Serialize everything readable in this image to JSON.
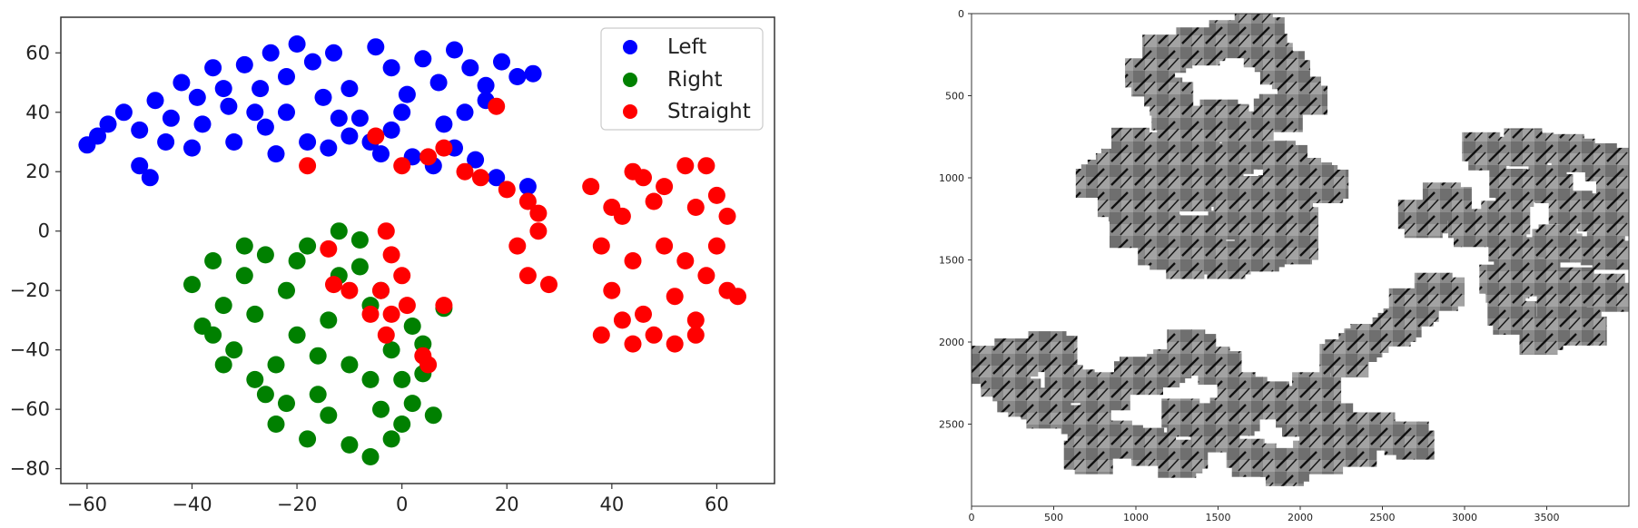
{
  "chart_data": [
    {
      "type": "scatter",
      "title": "",
      "xlabel": "",
      "ylabel": "",
      "xlim": [
        -65,
        71
      ],
      "ylim": [
        -85,
        72
      ],
      "xticks": [
        -60,
        -40,
        -20,
        0,
        20,
        40,
        60
      ],
      "yticks": [
        -80,
        -60,
        -40,
        -20,
        0,
        20,
        40,
        60
      ],
      "xtick_labels": [
        "−60",
        "−40",
        "−20",
        "0",
        "20",
        "40",
        "60"
      ],
      "ytick_labels": [
        "−80",
        "−60",
        "−40",
        "−20",
        "0",
        "20",
        "40",
        "60"
      ],
      "grid": false,
      "legend": {
        "placement": "top-right",
        "entries": [
          "Left",
          "Right",
          "Straight"
        ]
      },
      "series": [
        {
          "name": "Left",
          "color": "#0000ff",
          "points": [
            [
              -60,
              29
            ],
            [
              -56,
              36
            ],
            [
              -53,
              40
            ],
            [
              -50,
              34
            ],
            [
              -47,
              44
            ],
            [
              -44,
              38
            ],
            [
              -42,
              50
            ],
            [
              -39,
              45
            ],
            [
              -36,
              55
            ],
            [
              -33,
              42
            ],
            [
              -30,
              56
            ],
            [
              -27,
              48
            ],
            [
              -25,
              60
            ],
            [
              -22,
              52
            ],
            [
              -20,
              63
            ],
            [
              -17,
              57
            ],
            [
              -15,
              45
            ],
            [
              -13,
              60
            ],
            [
              -10,
              48
            ],
            [
              -8,
              38
            ],
            [
              -5,
              62
            ],
            [
              -2,
              55
            ],
            [
              1,
              46
            ],
            [
              4,
              58
            ],
            [
              7,
              50
            ],
            [
              10,
              61
            ],
            [
              13,
              55
            ],
            [
              16,
              49
            ],
            [
              19,
              57
            ],
            [
              22,
              52
            ],
            [
              25,
              53
            ],
            [
              -50,
              22
            ],
            [
              -45,
              30
            ],
            [
              -38,
              36
            ],
            [
              -32,
              30
            ],
            [
              -26,
              35
            ],
            [
              -22,
              40
            ],
            [
              -18,
              30
            ],
            [
              -14,
              28
            ],
            [
              -10,
              32
            ],
            [
              -6,
              30
            ],
            [
              -2,
              34
            ],
            [
              2,
              25
            ],
            [
              6,
              22
            ],
            [
              10,
              28
            ],
            [
              14,
              24
            ],
            [
              18,
              18
            ],
            [
              24,
              15
            ],
            [
              -58,
              32
            ],
            [
              -48,
              18
            ],
            [
              -40,
              28
            ],
            [
              -34,
              48
            ],
            [
              -28,
              40
            ],
            [
              -12,
              38
            ],
            [
              0,
              40
            ],
            [
              8,
              36
            ],
            [
              12,
              40
            ],
            [
              16,
              44
            ],
            [
              -24,
              26
            ],
            [
              -4,
              26
            ]
          ]
        },
        {
          "name": "Right",
          "color": "#008000",
          "points": [
            [
              -40,
              -18
            ],
            [
              -38,
              -32
            ],
            [
              -36,
              -10
            ],
            [
              -34,
              -25
            ],
            [
              -32,
              -40
            ],
            [
              -30,
              -15
            ],
            [
              -28,
              -28
            ],
            [
              -26,
              -8
            ],
            [
              -24,
              -45
            ],
            [
              -22,
              -20
            ],
            [
              -20,
              -35
            ],
            [
              -18,
              -5
            ],
            [
              -16,
              -55
            ],
            [
              -14,
              -30
            ],
            [
              -12,
              -15
            ],
            [
              -10,
              -45
            ],
            [
              -8,
              -3
            ],
            [
              -6,
              -25
            ],
            [
              -4,
              -60
            ],
            [
              -2,
              -40
            ],
            [
              0,
              -50
            ],
            [
              2,
              -32
            ],
            [
              4,
              -48
            ],
            [
              6,
              -62
            ],
            [
              -26,
              -55
            ],
            [
              -24,
              -65
            ],
            [
              -22,
              -58
            ],
            [
              -18,
              -70
            ],
            [
              -14,
              -62
            ],
            [
              -10,
              -72
            ],
            [
              -6,
              -76
            ],
            [
              -2,
              -70
            ],
            [
              2,
              -58
            ],
            [
              -30,
              -5
            ],
            [
              -20,
              -10
            ],
            [
              -12,
              0
            ],
            [
              -8,
              -12
            ],
            [
              -4,
              -20
            ],
            [
              8,
              -26
            ],
            [
              -36,
              -35
            ],
            [
              -34,
              -45
            ],
            [
              -28,
              -50
            ],
            [
              -16,
              -42
            ],
            [
              -6,
              -50
            ],
            [
              0,
              -65
            ],
            [
              4,
              -38
            ]
          ]
        },
        {
          "name": "Straight",
          "color": "#ff0000",
          "points": [
            [
              -18,
              22
            ],
            [
              -5,
              32
            ],
            [
              18,
              42
            ],
            [
              0,
              22
            ],
            [
              5,
              25
            ],
            [
              8,
              28
            ],
            [
              12,
              20
            ],
            [
              15,
              18
            ],
            [
              20,
              14
            ],
            [
              24,
              10
            ],
            [
              26,
              6
            ],
            [
              22,
              -5
            ],
            [
              24,
              -15
            ],
            [
              28,
              -18
            ],
            [
              26,
              0
            ],
            [
              -3,
              0
            ],
            [
              -2,
              -8
            ],
            [
              0,
              -15
            ],
            [
              -4,
              -20
            ],
            [
              -2,
              -28
            ],
            [
              -6,
              -28
            ],
            [
              -14,
              -6
            ],
            [
              -13,
              -18
            ],
            [
              -10,
              -20
            ],
            [
              1,
              -25
            ],
            [
              8,
              -25
            ],
            [
              4,
              -42
            ],
            [
              5,
              -45
            ],
            [
              -3,
              -35
            ],
            [
              36,
              15
            ],
            [
              38,
              -5
            ],
            [
              40,
              -20
            ],
            [
              38,
              -35
            ],
            [
              42,
              5
            ],
            [
              44,
              -10
            ],
            [
              46,
              -28
            ],
            [
              44,
              20
            ],
            [
              48,
              10
            ],
            [
              50,
              -5
            ],
            [
              52,
              -22
            ],
            [
              48,
              -35
            ],
            [
              54,
              22
            ],
            [
              56,
              8
            ],
            [
              58,
              -15
            ],
            [
              56,
              -30
            ],
            [
              60,
              12
            ],
            [
              62,
              -20
            ],
            [
              60,
              -5
            ],
            [
              58,
              22
            ],
            [
              64,
              -22
            ],
            [
              52,
              -38
            ],
            [
              46,
              18
            ],
            [
              42,
              -30
            ],
            [
              54,
              -10
            ],
            [
              40,
              8
            ],
            [
              50,
              15
            ],
            [
              62,
              5
            ],
            [
              44,
              -38
            ],
            [
              56,
              -35
            ]
          ]
        }
      ]
    },
    {
      "type": "image-mosaic",
      "title": "",
      "xlim": [
        0,
        4000
      ],
      "ylim": [
        3000,
        0
      ],
      "xticks": [
        0,
        500,
        1000,
        1500,
        2000,
        2500,
        3000,
        3500
      ],
      "yticks": [
        0,
        500,
        1000,
        1500,
        2000,
        2500
      ],
      "xtick_labels": [
        "0",
        "500",
        "1000",
        "1500",
        "2000",
        "2500",
        "3000",
        "3500"
      ],
      "ytick_labels": [
        "0",
        "500",
        "1000",
        "1500",
        "2000",
        "2500"
      ],
      "clusters": [
        [
          [
            1100,
            400
          ],
          [
            1200,
            250
          ],
          [
            1400,
            200
          ],
          [
            1600,
            150
          ],
          [
            1750,
            100
          ],
          [
            1800,
            250
          ],
          [
            1900,
            350
          ],
          [
            2000,
            500
          ],
          [
            1850,
            600
          ],
          [
            1700,
            700
          ],
          [
            1550,
            650
          ],
          [
            1400,
            700
          ],
          [
            1250,
            650
          ],
          [
            1200,
            500
          ],
          [
            1000,
            800
          ],
          [
            900,
            950
          ],
          [
            1050,
            1000
          ],
          [
            1250,
            950
          ],
          [
            1450,
            900
          ],
          [
            1650,
            850
          ],
          [
            1900,
            900
          ],
          [
            2050,
            1000
          ],
          [
            1900,
            1100
          ],
          [
            1700,
            1100
          ],
          [
            1500,
            1050
          ],
          [
            1300,
            1100
          ],
          [
            1100,
            1150
          ],
          [
            900,
            1150
          ],
          [
            800,
            1000
          ],
          [
            1000,
            1300
          ],
          [
            1200,
            1350
          ],
          [
            1400,
            1350
          ],
          [
            1550,
            1500
          ],
          [
            1750,
            1450
          ],
          [
            1950,
            1400
          ],
          [
            1950,
            1250
          ],
          [
            1150,
            1450
          ],
          [
            1350,
            1500
          ],
          [
            1800,
            1300
          ],
          [
            1600,
            1250
          ],
          [
            2150,
            1050
          ],
          [
            1300,
            800
          ]
        ],
        [
          [
            3150,
            850
          ],
          [
            3400,
            820
          ],
          [
            3650,
            850
          ],
          [
            3850,
            900
          ],
          [
            3950,
            1050
          ],
          [
            3900,
            1250
          ],
          [
            3850,
            1450
          ],
          [
            3850,
            1700
          ],
          [
            3700,
            1900
          ],
          [
            3500,
            1950
          ],
          [
            3300,
            1850
          ],
          [
            3250,
            1650
          ],
          [
            3300,
            1450
          ],
          [
            3250,
            1250
          ],
          [
            3300,
            1050
          ],
          [
            3500,
            1050
          ],
          [
            3650,
            1200
          ],
          [
            3550,
            1400
          ],
          [
            3450,
            1600
          ],
          [
            3650,
            1650
          ],
          [
            3600,
            1800
          ],
          [
            2900,
            1150
          ],
          [
            2750,
            1250
          ],
          [
            3050,
            1300
          ],
          [
            3800,
            1200
          ]
        ],
        [
          [
            100,
            2150
          ],
          [
            300,
            2100
          ],
          [
            500,
            2050
          ],
          [
            600,
            2250
          ],
          [
            450,
            2400
          ],
          [
            300,
            2350
          ],
          [
            200,
            2250
          ],
          [
            800,
            2300
          ],
          [
            1000,
            2200
          ],
          [
            1200,
            2150
          ],
          [
            1350,
            2050
          ],
          [
            1500,
            2150
          ],
          [
            1650,
            2300
          ],
          [
            1850,
            2350
          ],
          [
            2000,
            2450
          ],
          [
            2200,
            2500
          ],
          [
            2450,
            2550
          ],
          [
            2650,
            2600
          ],
          [
            1500,
            2550
          ],
          [
            1300,
            2700
          ],
          [
            1100,
            2650
          ],
          [
            900,
            2600
          ],
          [
            700,
            2500
          ],
          [
            1700,
            2700
          ],
          [
            1900,
            2750
          ],
          [
            2100,
            2700
          ],
          [
            2300,
            2650
          ],
          [
            2250,
            2100
          ],
          [
            2400,
            2000
          ],
          [
            2600,
            1900
          ],
          [
            2700,
            1800
          ],
          [
            2850,
            1700
          ],
          [
            2100,
            2300
          ],
          [
            1600,
            2450
          ],
          [
            1300,
            2450
          ],
          [
            700,
            2700
          ]
        ]
      ]
    }
  ]
}
